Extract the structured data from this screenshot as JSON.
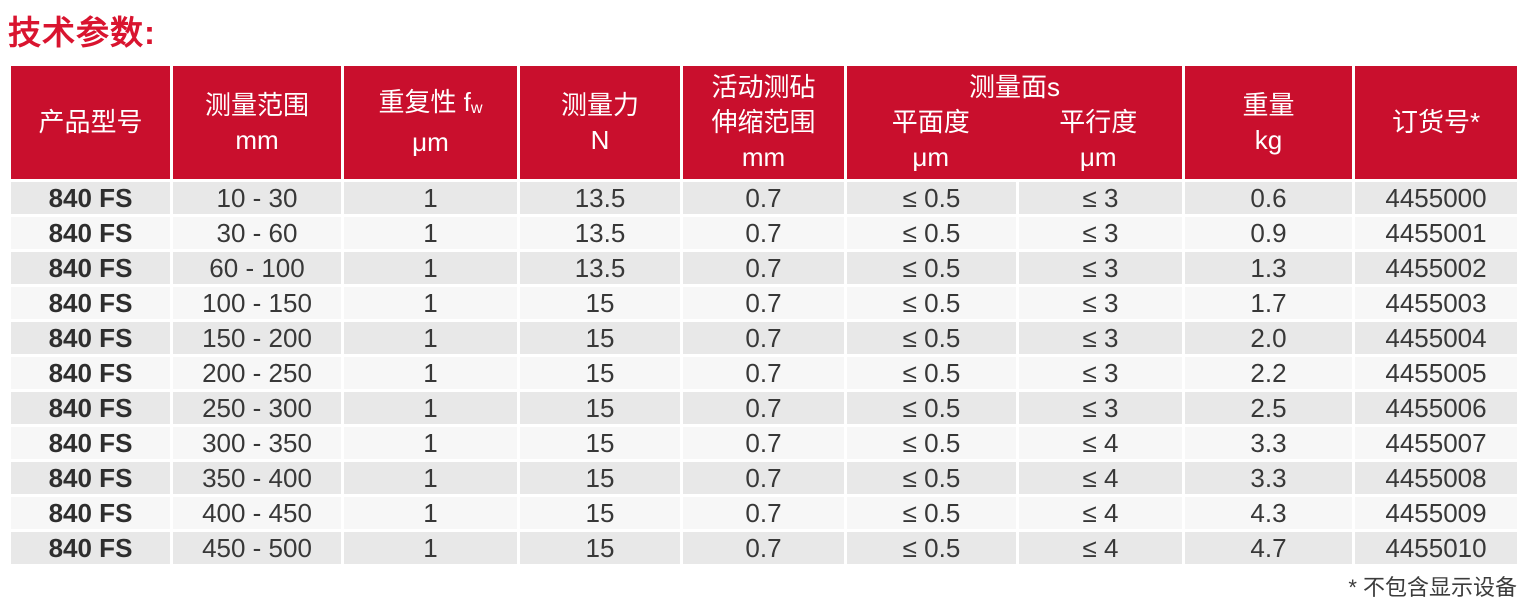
{
  "page": {
    "title": "技术参数:",
    "footnote": "* 不包含显示设备"
  },
  "colors": {
    "title_red": "#d9142f",
    "header_red": "#c90f2d",
    "row_odd_gray": "#e8e8e8",
    "row_even_white": "#f7f7f7",
    "body_text": "#383838"
  },
  "table": {
    "header": {
      "model": {
        "line1": "产品型号"
      },
      "range": {
        "line1": "测量范围",
        "line2": "mm"
      },
      "repeatability": {
        "line1_main": "重复性 f",
        "line1_sub": "w",
        "line2": "μm"
      },
      "force": {
        "line1": "测量力",
        "line2": "N"
      },
      "anvil": {
        "line1": "活动测砧",
        "line2": "伸缩范围",
        "line3": "mm"
      },
      "surfaces": {
        "group": "测量面s",
        "flatness": "平面度",
        "parallelism": "平行度",
        "flatness_unit": "μm",
        "parallelism_unit": "μm"
      },
      "weight": {
        "line1": "重量",
        "line2": "kg"
      },
      "order": {
        "line1": "订货号*"
      }
    },
    "column_keys": [
      "model",
      "range",
      "repeatability",
      "force",
      "anvil",
      "flatness",
      "parallelism",
      "weight",
      "order"
    ],
    "rows": [
      {
        "model": "840 FS",
        "range": "10 - 30",
        "repeatability": "1",
        "force": "13.5",
        "anvil": "0.7",
        "flatness": "≤ 0.5",
        "parallelism": "≤ 3",
        "weight": "0.6",
        "order": "4455000"
      },
      {
        "model": "840 FS",
        "range": "30 - 60",
        "repeatability": "1",
        "force": "13.5",
        "anvil": "0.7",
        "flatness": "≤ 0.5",
        "parallelism": "≤ 3",
        "weight": "0.9",
        "order": "4455001"
      },
      {
        "model": "840 FS",
        "range": "60 - 100",
        "repeatability": "1",
        "force": "13.5",
        "anvil": "0.7",
        "flatness": "≤ 0.5",
        "parallelism": "≤ 3",
        "weight": "1.3",
        "order": "4455002"
      },
      {
        "model": "840 FS",
        "range": "100 - 150",
        "repeatability": "1",
        "force": "15",
        "anvil": "0.7",
        "flatness": "≤ 0.5",
        "parallelism": "≤ 3",
        "weight": "1.7",
        "order": "4455003"
      },
      {
        "model": "840 FS",
        "range": "150 - 200",
        "repeatability": "1",
        "force": "15",
        "anvil": "0.7",
        "flatness": "≤ 0.5",
        "parallelism": "≤ 3",
        "weight": "2.0",
        "order": "4455004"
      },
      {
        "model": "840 FS",
        "range": "200 - 250",
        "repeatability": "1",
        "force": "15",
        "anvil": "0.7",
        "flatness": "≤ 0.5",
        "parallelism": "≤ 3",
        "weight": "2.2",
        "order": "4455005"
      },
      {
        "model": "840 FS",
        "range": "250 - 300",
        "repeatability": "1",
        "force": "15",
        "anvil": "0.7",
        "flatness": "≤ 0.5",
        "parallelism": "≤ 3",
        "weight": "2.5",
        "order": "4455006"
      },
      {
        "model": "840 FS",
        "range": "300 - 350",
        "repeatability": "1",
        "force": "15",
        "anvil": "0.7",
        "flatness": "≤ 0.5",
        "parallelism": "≤ 4",
        "weight": "3.3",
        "order": "4455007"
      },
      {
        "model": "840 FS",
        "range": "350 - 400",
        "repeatability": "1",
        "force": "15",
        "anvil": "0.7",
        "flatness": "≤ 0.5",
        "parallelism": "≤ 4",
        "weight": "3.3",
        "order": "4455008"
      },
      {
        "model": "840 FS",
        "range": "400 - 450",
        "repeatability": "1",
        "force": "15",
        "anvil": "0.7",
        "flatness": "≤ 0.5",
        "parallelism": "≤ 4",
        "weight": "4.3",
        "order": "4455009"
      },
      {
        "model": "840 FS",
        "range": "450 - 500",
        "repeatability": "1",
        "force": "15",
        "anvil": "0.7",
        "flatness": "≤ 0.5",
        "parallelism": "≤ 4",
        "weight": "4.7",
        "order": "4455010"
      }
    ]
  }
}
